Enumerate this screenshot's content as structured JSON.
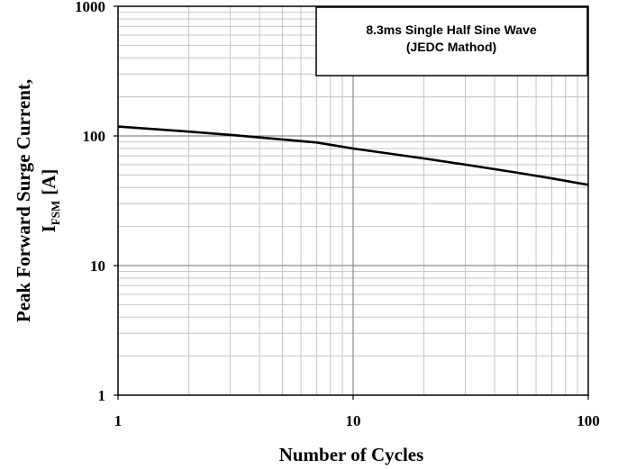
{
  "chart_data": {
    "type": "line",
    "xscale": "log",
    "yscale": "log",
    "xlim": [
      1,
      100
    ],
    "ylim": [
      1,
      1000
    ],
    "grid": true,
    "xlabel": "Number of Cycles",
    "ylabel_line1": "Peak Forward Surge Current,",
    "ylabel_line2_main": "I",
    "ylabel_line2_sub": "FSM",
    "ylabel_line2_unit": "[A]",
    "xticks": [
      "1",
      "10",
      "100"
    ],
    "yticks": [
      "1",
      "10",
      "100",
      "1000"
    ],
    "legend_line1": "8.3ms Single  Half Sine Wave",
    "legend_line2": "(JEDC Mathod)",
    "legend_position": "top-right",
    "series": [
      {
        "x": [
          1,
          2,
          3,
          5,
          7,
          10,
          20,
          30,
          50,
          70,
          100
        ],
        "y": [
          118,
          108,
          102,
          94,
          89,
          80,
          67,
          60,
          52,
          47,
          42
        ],
        "color": "#000000"
      }
    ]
  }
}
